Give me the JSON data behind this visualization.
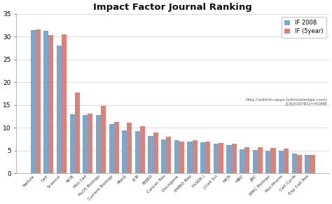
{
  "title": "Impact Factor Journal Ranking",
  "categories": [
    "Nature",
    "Cell",
    "Science",
    "NCB",
    "Mol Cell",
    "PLOS Biology",
    "Current Biology",
    "PNAS",
    "JCB",
    "EMBO",
    "Cancer Res",
    "Oncogene",
    "EMBO Rep",
    "FASEB J",
    "J Cell Sci",
    "MCB",
    "MBC",
    "JBC",
    "BMC Biology",
    "Mol Pharm",
    "Cell Cycle",
    "Exp Cell Res"
  ],
  "if_2008": [
    31.4,
    31.2,
    28.1,
    13.0,
    12.8,
    12.8,
    10.8,
    9.5,
    9.3,
    8.2,
    7.5,
    7.2,
    7.0,
    6.8,
    6.5,
    6.2,
    5.2,
    5.1,
    5.0,
    4.9,
    4.3,
    4.1
  ],
  "if_5year": [
    31.6,
    30.3,
    30.5,
    17.8,
    13.1,
    14.8,
    11.2,
    11.1,
    10.3,
    9.0,
    8.1,
    6.9,
    7.3,
    7.0,
    6.7,
    6.5,
    5.8,
    5.7,
    5.6,
    5.5,
    4.0,
    4.0
  ],
  "color_2008": "#7ea6c8",
  "color_5year": "#d9827a",
  "legend_label_2008": "IF 2008",
  "legend_label_5year": "IF (5year)",
  "url_text": "http://admin-apps.isiknowledge.com/\nJCR/JCR?RQ=HOME",
  "ylim": [
    0,
    35
  ],
  "yticks": [
    0,
    5,
    10,
    15,
    20,
    25,
    30,
    35
  ],
  "bg_color": "#ffffff",
  "grid_color": "#cccccc"
}
